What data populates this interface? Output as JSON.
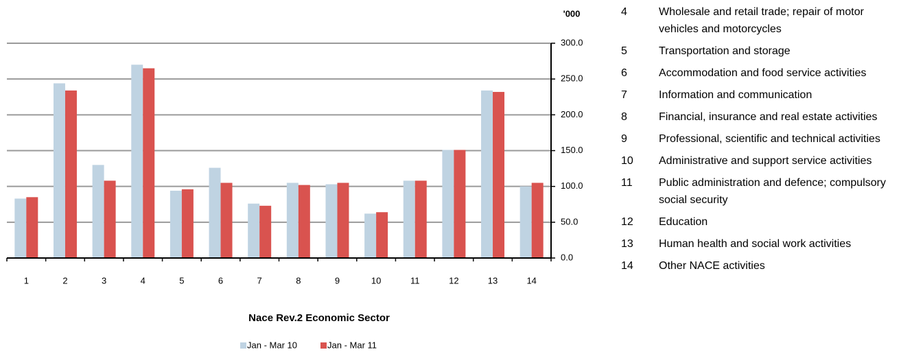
{
  "chart_data": {
    "type": "bar",
    "unit_label": "'000",
    "x_label": "Nace Rev.2 Economic Sector",
    "categories": [
      "1",
      "2",
      "3",
      "4",
      "5",
      "6",
      "7",
      "8",
      "9",
      "10",
      "11",
      "12",
      "13",
      "14"
    ],
    "series": [
      {
        "name": "Jan - Mar 10",
        "color": "#bfd3e2",
        "values": [
          83,
          244,
          130,
          270,
          94,
          126,
          76,
          105,
          103,
          62,
          108,
          151,
          234,
          100
        ]
      },
      {
        "name": "Jan - Mar 11",
        "color": "#d9534f",
        "values": [
          85,
          234,
          108,
          265,
          96,
          105,
          73,
          102,
          105,
          64,
          108,
          151,
          232,
          105
        ]
      }
    ],
    "ylim": [
      0,
      300
    ],
    "yticks": [
      {
        "value": 0,
        "label": "0.0"
      },
      {
        "value": 50,
        "label": "50.0"
      },
      {
        "value": 100,
        "label": "100.0"
      },
      {
        "value": 150,
        "label": "150.0"
      },
      {
        "value": 200,
        "label": "200.0"
      },
      {
        "value": 250,
        "label": "250.0"
      },
      {
        "value": 300,
        "label": "300.0"
      }
    ],
    "grid": true
  },
  "sectors": [
    {
      "code": "4",
      "label": "Wholesale and retail trade; repair of motor vehicles and motorcycles"
    },
    {
      "code": "5",
      "label": "Transportation and storage"
    },
    {
      "code": "6",
      "label": "Accommodation and food service activities"
    },
    {
      "code": "7",
      "label": "Information and communication"
    },
    {
      "code": "8",
      "label": "Financial, insurance and real estate activities"
    },
    {
      "code": "9",
      "label": "Professional, scientific and technical activities"
    },
    {
      "code": "10",
      "label": "Administrative and support service activities"
    },
    {
      "code": "11",
      "label": "Public administration and defence; compulsory social security"
    },
    {
      "code": "12",
      "label": "Education"
    },
    {
      "code": "13",
      "label": "Human health and social work activities"
    },
    {
      "code": "14",
      "label": "Other NACE activities"
    }
  ]
}
